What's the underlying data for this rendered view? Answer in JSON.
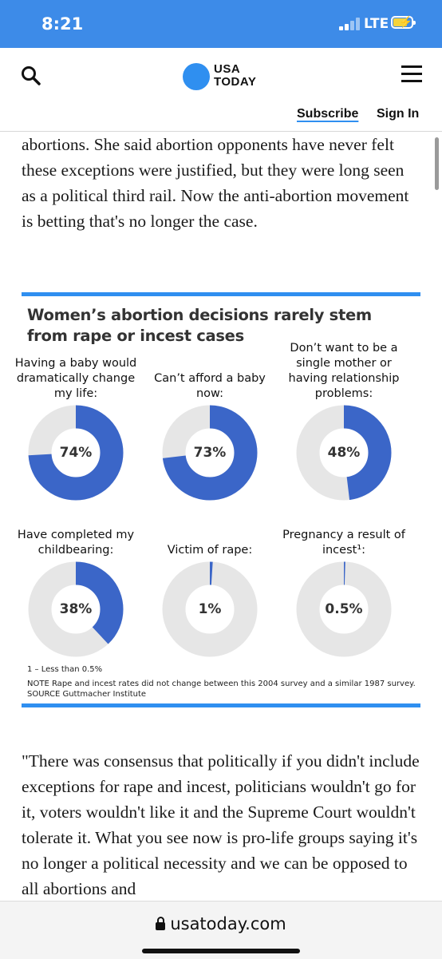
{
  "status_bar": {
    "time": "8:21",
    "network": "LTE"
  },
  "header": {
    "logo_line1": "USA",
    "logo_line2": "TODAY",
    "subscribe_label": "Subscribe",
    "signin_label": "Sign In"
  },
  "article": {
    "paragraph_1": "abortions. She said abortion opponents have never felt these exceptions were justified, but they were long seen as a political third rail. Now the anti-abortion movement is betting that's no longer the case.",
    "paragraph_2": "\"There was consensus that politically if you didn't include exceptions for rape and incest, politicians wouldn't go for it, voters wouldn't like it and the Supreme Court wouldn't tolerate it. What you see now is pro-life groups saying it's no longer a political necessity and we can be opposed to all abortions and"
  },
  "chart_data": {
    "type": "pie",
    "title": "Women’s abortion decisions rarely stem from rape or incest cases",
    "colors": {
      "value": "#3b66c8",
      "remainder": "#e6e6e6",
      "accent_bar": "#2f8ff0"
    },
    "items": [
      {
        "label": "Having a baby would dramatically change my life:",
        "value": 74,
        "display": "74%"
      },
      {
        "label": "Can’t afford a baby now:",
        "value": 73,
        "display": "73%"
      },
      {
        "label": "Don’t want to be a single mother or having relationship problems:",
        "value": 48,
        "display": "48%"
      },
      {
        "label": "Have completed my childbearing:",
        "value": 38,
        "display": "38%"
      },
      {
        "label": "Victim of rape:",
        "value": 1,
        "display": "1%"
      },
      {
        "label": "Pregnancy a result of incest¹:",
        "value": 0.5,
        "display": "0.5%"
      }
    ],
    "notes": [
      "1 – Less than 0.5%",
      "NOTE Rape and incest rates did not change between this 2004 survey and a similar 1987 survey.",
      "SOURCE Guttmacher Institute"
    ]
  },
  "browser": {
    "url": "usatoday.com"
  }
}
